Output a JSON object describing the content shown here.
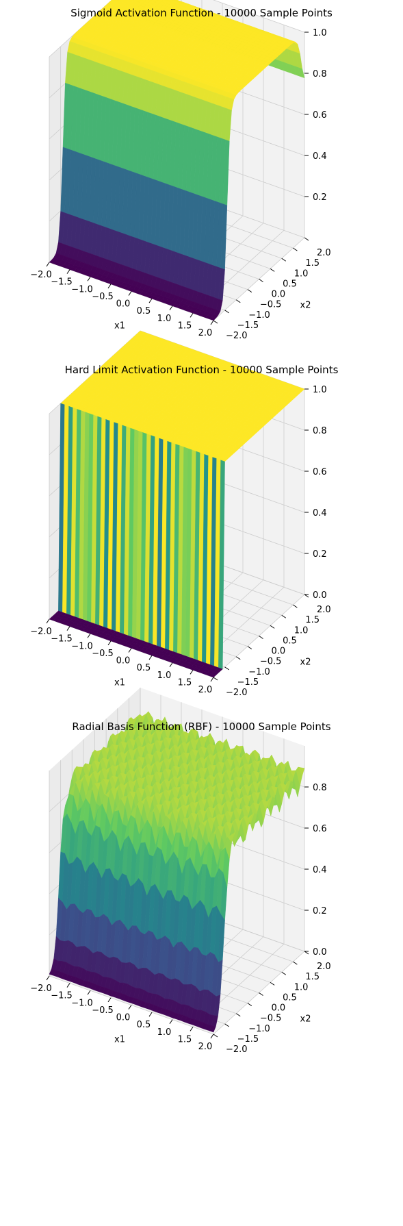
{
  "colormap": {
    "name": "viridis",
    "stops": [
      "#440154",
      "#3b528b",
      "#21918c",
      "#5ec962",
      "#fde725"
    ]
  },
  "axis_colors": {
    "pane": "#f2f2f2",
    "pane_side": "#ebebeb",
    "grid": "#cccccc",
    "axis_line": "#000000"
  },
  "chart_data": [
    {
      "type": "surface",
      "function": "sigmoid",
      "title": "Sigmoid Activation Function - 10000 Sample Points",
      "xlabel": "x1",
      "ylabel": "x2",
      "zlabel": "",
      "xlim": [
        -2,
        2
      ],
      "ylim": [
        -2,
        2
      ],
      "zlim": [
        0,
        1
      ],
      "x_ticks": [
        "−2.0",
        "−1.5",
        "−1.0",
        "−0.5",
        "0.0",
        "0.5",
        "1.0",
        "1.5",
        "2.0"
      ],
      "y_ticks": [
        "−2.0",
        "−1.5",
        "−1.0",
        "−0.5",
        "0.0",
        "0.5",
        "1.0",
        "1.5",
        "2.0"
      ],
      "z_ticks": [
        "0.2",
        "0.4",
        "0.6",
        "0.8",
        "1.0"
      ],
      "z_tick_values": [
        0.2,
        0.4,
        0.6,
        0.8,
        1.0
      ],
      "sample_points": 10000,
      "grid": true
    },
    {
      "type": "surface",
      "function": "hard_limit",
      "title": "Hard Limit Activation Function - 10000 Sample Points",
      "xlabel": "x1",
      "ylabel": "x2",
      "zlabel": "",
      "xlim": [
        -2,
        2
      ],
      "ylim": [
        -2,
        2
      ],
      "zlim": [
        0,
        1
      ],
      "x_ticks": [
        "−2.0",
        "−1.5",
        "−1.0",
        "−0.5",
        "0.0",
        "0.5",
        "1.0",
        "1.5",
        "2.0"
      ],
      "y_ticks": [
        "−2.0",
        "−1.5",
        "−1.0",
        "−0.5",
        "0.0",
        "0.5",
        "1.0",
        "1.5",
        "2.0"
      ],
      "z_ticks": [
        "0.0",
        "0.2",
        "0.4",
        "0.6",
        "0.8",
        "1.0"
      ],
      "z_tick_values": [
        0.0,
        0.2,
        0.4,
        0.6,
        0.8,
        1.0
      ],
      "sample_points": 10000,
      "grid": true
    },
    {
      "type": "surface",
      "function": "rbf",
      "title": "Radial Basis Function (RBF) - 10000 Sample Points",
      "xlabel": "x1",
      "ylabel": "x2",
      "zlabel": "",
      "xlim": [
        -2,
        2
      ],
      "ylim": [
        -2,
        2
      ],
      "zlim": [
        0,
        1
      ],
      "x_ticks": [
        "−2.0",
        "−1.5",
        "−1.0",
        "−0.5",
        "0.0",
        "0.5",
        "1.0",
        "1.5",
        "2.0"
      ],
      "y_ticks": [
        "−2.0",
        "−1.5",
        "−1.0",
        "−0.5",
        "0.0",
        "0.5",
        "1.0",
        "1.5",
        "2.0"
      ],
      "z_ticks": [
        "0.0",
        "0.2",
        "0.4",
        "0.6",
        "0.8"
      ],
      "z_tick_values": [
        0.0,
        0.2,
        0.4,
        0.6,
        0.8
      ],
      "sample_points": 10000,
      "grid": true
    }
  ]
}
